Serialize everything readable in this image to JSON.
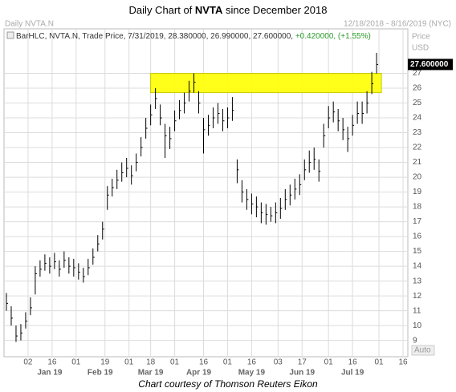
{
  "chart_data": {
    "type": "ohlc",
    "title_parts": [
      "Daily Chart of ",
      "NVTA",
      " since December 2018"
    ],
    "symbol_label": "Daily NVTA.N",
    "date_range": "12/18/2018 - 8/16/2019 (NYC)",
    "legend_parts": [
      "BarHLC, NVTA.N, Trade Price, 7/31/2019, 28.380000, 26.990000, 27.600000, ",
      "+0.420000, (+1.55%)"
    ],
    "y_axis_label": [
      "Price",
      "USD"
    ],
    "auto_label": "Auto",
    "last_label": "27.600000",
    "caption": "Chart courtesy of Thomson Reuters Eikon",
    "color": "#000000",
    "grid": true,
    "highlight": {
      "xlim": [
        60,
        156
      ],
      "ylim": [
        25.7,
        27
      ],
      "color": "#ffff00"
    },
    "xlim": [
      -1,
      167
    ],
    "ylim": [
      7.9,
      30
    ],
    "yticks": [
      9,
      10,
      11,
      12,
      13,
      14,
      15,
      16,
      17,
      18,
      19,
      20,
      21,
      22,
      23,
      24,
      25,
      26,
      27
    ],
    "xticks": [
      {
        "value": 9,
        "label": "02"
      },
      {
        "value": 19,
        "label": "16"
      },
      {
        "value": 29,
        "label": "01"
      },
      {
        "value": 41,
        "label": "19"
      },
      {
        "value": 51,
        "label": "01"
      },
      {
        "value": 60,
        "label": "18"
      },
      {
        "value": 70,
        "label": "01"
      },
      {
        "value": 82,
        "label": "16"
      },
      {
        "value": 92,
        "label": "01"
      },
      {
        "value": 102,
        "label": "16"
      },
      {
        "value": 113,
        "label": "03"
      },
      {
        "value": 123,
        "label": "17"
      },
      {
        "value": 134,
        "label": "01"
      },
      {
        "value": 144,
        "label": "16"
      },
      {
        "value": 155,
        "label": "01"
      },
      {
        "value": 165,
        "label": "16"
      }
    ],
    "month_ticks": [
      {
        "value": 18,
        "label": "Jan 19"
      },
      {
        "value": 39,
        "label": "Feb 19"
      },
      {
        "value": 60,
        "label": "Mar 19"
      },
      {
        "value": 80,
        "label": "Apr 19"
      },
      {
        "value": 102,
        "label": "May 19"
      },
      {
        "value": 123,
        "label": "Jun 19"
      },
      {
        "value": 144,
        "label": "Jul 19"
      }
    ],
    "x": [
      0,
      2,
      4,
      6,
      8,
      10,
      12,
      14,
      16,
      18,
      20,
      22,
      24,
      26,
      28,
      30,
      32,
      34,
      36,
      38,
      40,
      42,
      44,
      46,
      48,
      50,
      52,
      54,
      56,
      58,
      60,
      62,
      64,
      66,
      68,
      70,
      72,
      74,
      76,
      78,
      80,
      82,
      84,
      86,
      88,
      90,
      92,
      94,
      96,
      98,
      100,
      102,
      104,
      106,
      108,
      110,
      112,
      114,
      116,
      118,
      120,
      122,
      124,
      126,
      128,
      130,
      132,
      134,
      136,
      138,
      140,
      142,
      144,
      146,
      148,
      150,
      152,
      154
    ],
    "bars": [
      [
        12.2,
        11.0,
        11.5
      ],
      [
        11.3,
        10.0,
        10.5
      ],
      [
        10.0,
        8.9,
        9.3
      ],
      [
        10.1,
        9.0,
        9.5
      ],
      [
        10.9,
        9.8,
        10.3
      ],
      [
        11.9,
        10.7,
        11.2
      ],
      [
        14.0,
        12.1,
        13.5
      ],
      [
        14.4,
        13.3,
        13.8
      ],
      [
        14.8,
        13.7,
        14.2
      ],
      [
        14.6,
        13.5,
        14.0
      ],
      [
        14.9,
        13.8,
        14.3
      ],
      [
        14.4,
        13.3,
        13.8
      ],
      [
        15.0,
        13.9,
        14.4
      ],
      [
        14.6,
        13.5,
        14.0
      ],
      [
        14.5,
        13.3,
        13.9
      ],
      [
        14.2,
        13.1,
        13.6
      ],
      [
        13.9,
        12.9,
        13.3
      ],
      [
        14.5,
        13.4,
        13.9
      ],
      [
        15.2,
        14.1,
        14.6
      ],
      [
        16.1,
        15.0,
        15.5
      ],
      [
        17.0,
        15.8,
        16.5
      ],
      [
        19.4,
        17.8,
        18.8
      ],
      [
        19.9,
        18.7,
        19.3
      ],
      [
        20.5,
        19.2,
        19.8
      ],
      [
        21.0,
        19.7,
        20.3
      ],
      [
        21.3,
        20.0,
        20.6
      ],
      [
        20.8,
        19.5,
        20.1
      ],
      [
        21.6,
        20.4,
        21.0
      ],
      [
        22.7,
        21.4,
        22.0
      ],
      [
        24.0,
        22.6,
        23.3
      ],
      [
        24.9,
        23.5,
        24.2
      ],
      [
        26.0,
        24.6,
        25.3
      ],
      [
        24.9,
        23.5,
        24.0
      ],
      [
        23.6,
        21.3,
        22.8
      ],
      [
        23.4,
        21.9,
        22.6
      ],
      [
        24.5,
        23.1,
        23.8
      ],
      [
        25.2,
        23.9,
        24.5
      ],
      [
        25.7,
        24.3,
        25.0
      ],
      [
        26.5,
        25.1,
        25.8
      ],
      [
        27.0,
        25.7,
        26.4
      ],
      [
        25.8,
        24.3,
        25.0
      ],
      [
        24.0,
        21.6,
        23.2
      ],
      [
        24.2,
        22.8,
        23.5
      ],
      [
        24.7,
        23.3,
        24.0
      ],
      [
        25.0,
        23.6,
        24.3
      ],
      [
        24.6,
        23.1,
        23.8
      ],
      [
        24.7,
        23.3,
        24.0
      ],
      [
        25.4,
        23.8,
        24.5
      ],
      [
        21.2,
        19.6,
        20.5
      ],
      [
        19.8,
        18.3,
        19.0
      ],
      [
        19.2,
        17.8,
        18.5
      ],
      [
        18.9,
        17.5,
        18.2
      ],
      [
        18.7,
        17.3,
        18.0
      ],
      [
        18.3,
        16.9,
        17.6
      ],
      [
        18.2,
        16.8,
        17.5
      ],
      [
        18.0,
        17.0,
        17.4
      ],
      [
        18.3,
        16.9,
        17.6
      ],
      [
        18.6,
        17.2,
        17.9
      ],
      [
        19.2,
        17.8,
        18.5
      ],
      [
        19.5,
        18.1,
        18.8
      ],
      [
        19.9,
        18.5,
        19.2
      ],
      [
        20.2,
        18.8,
        19.5
      ],
      [
        21.2,
        19.8,
        20.5
      ],
      [
        21.8,
        20.3,
        21.0
      ],
      [
        22.0,
        20.5,
        21.2
      ],
      [
        21.2,
        19.7,
        20.4
      ],
      [
        23.6,
        22.0,
        22.8
      ],
      [
        24.8,
        23.3,
        24.0
      ],
      [
        25.1,
        23.7,
        24.4
      ],
      [
        24.6,
        23.1,
        23.8
      ],
      [
        24.0,
        22.5,
        23.2
      ],
      [
        23.4,
        21.7,
        22.6
      ],
      [
        24.2,
        22.8,
        23.5
      ],
      [
        25.1,
        23.6,
        24.3
      ],
      [
        25.1,
        23.6,
        24.3
      ],
      [
        25.8,
        24.3,
        25.0
      ],
      [
        27.1,
        25.6,
        26.3
      ],
      [
        28.38,
        26.99,
        27.6
      ]
    ]
  }
}
